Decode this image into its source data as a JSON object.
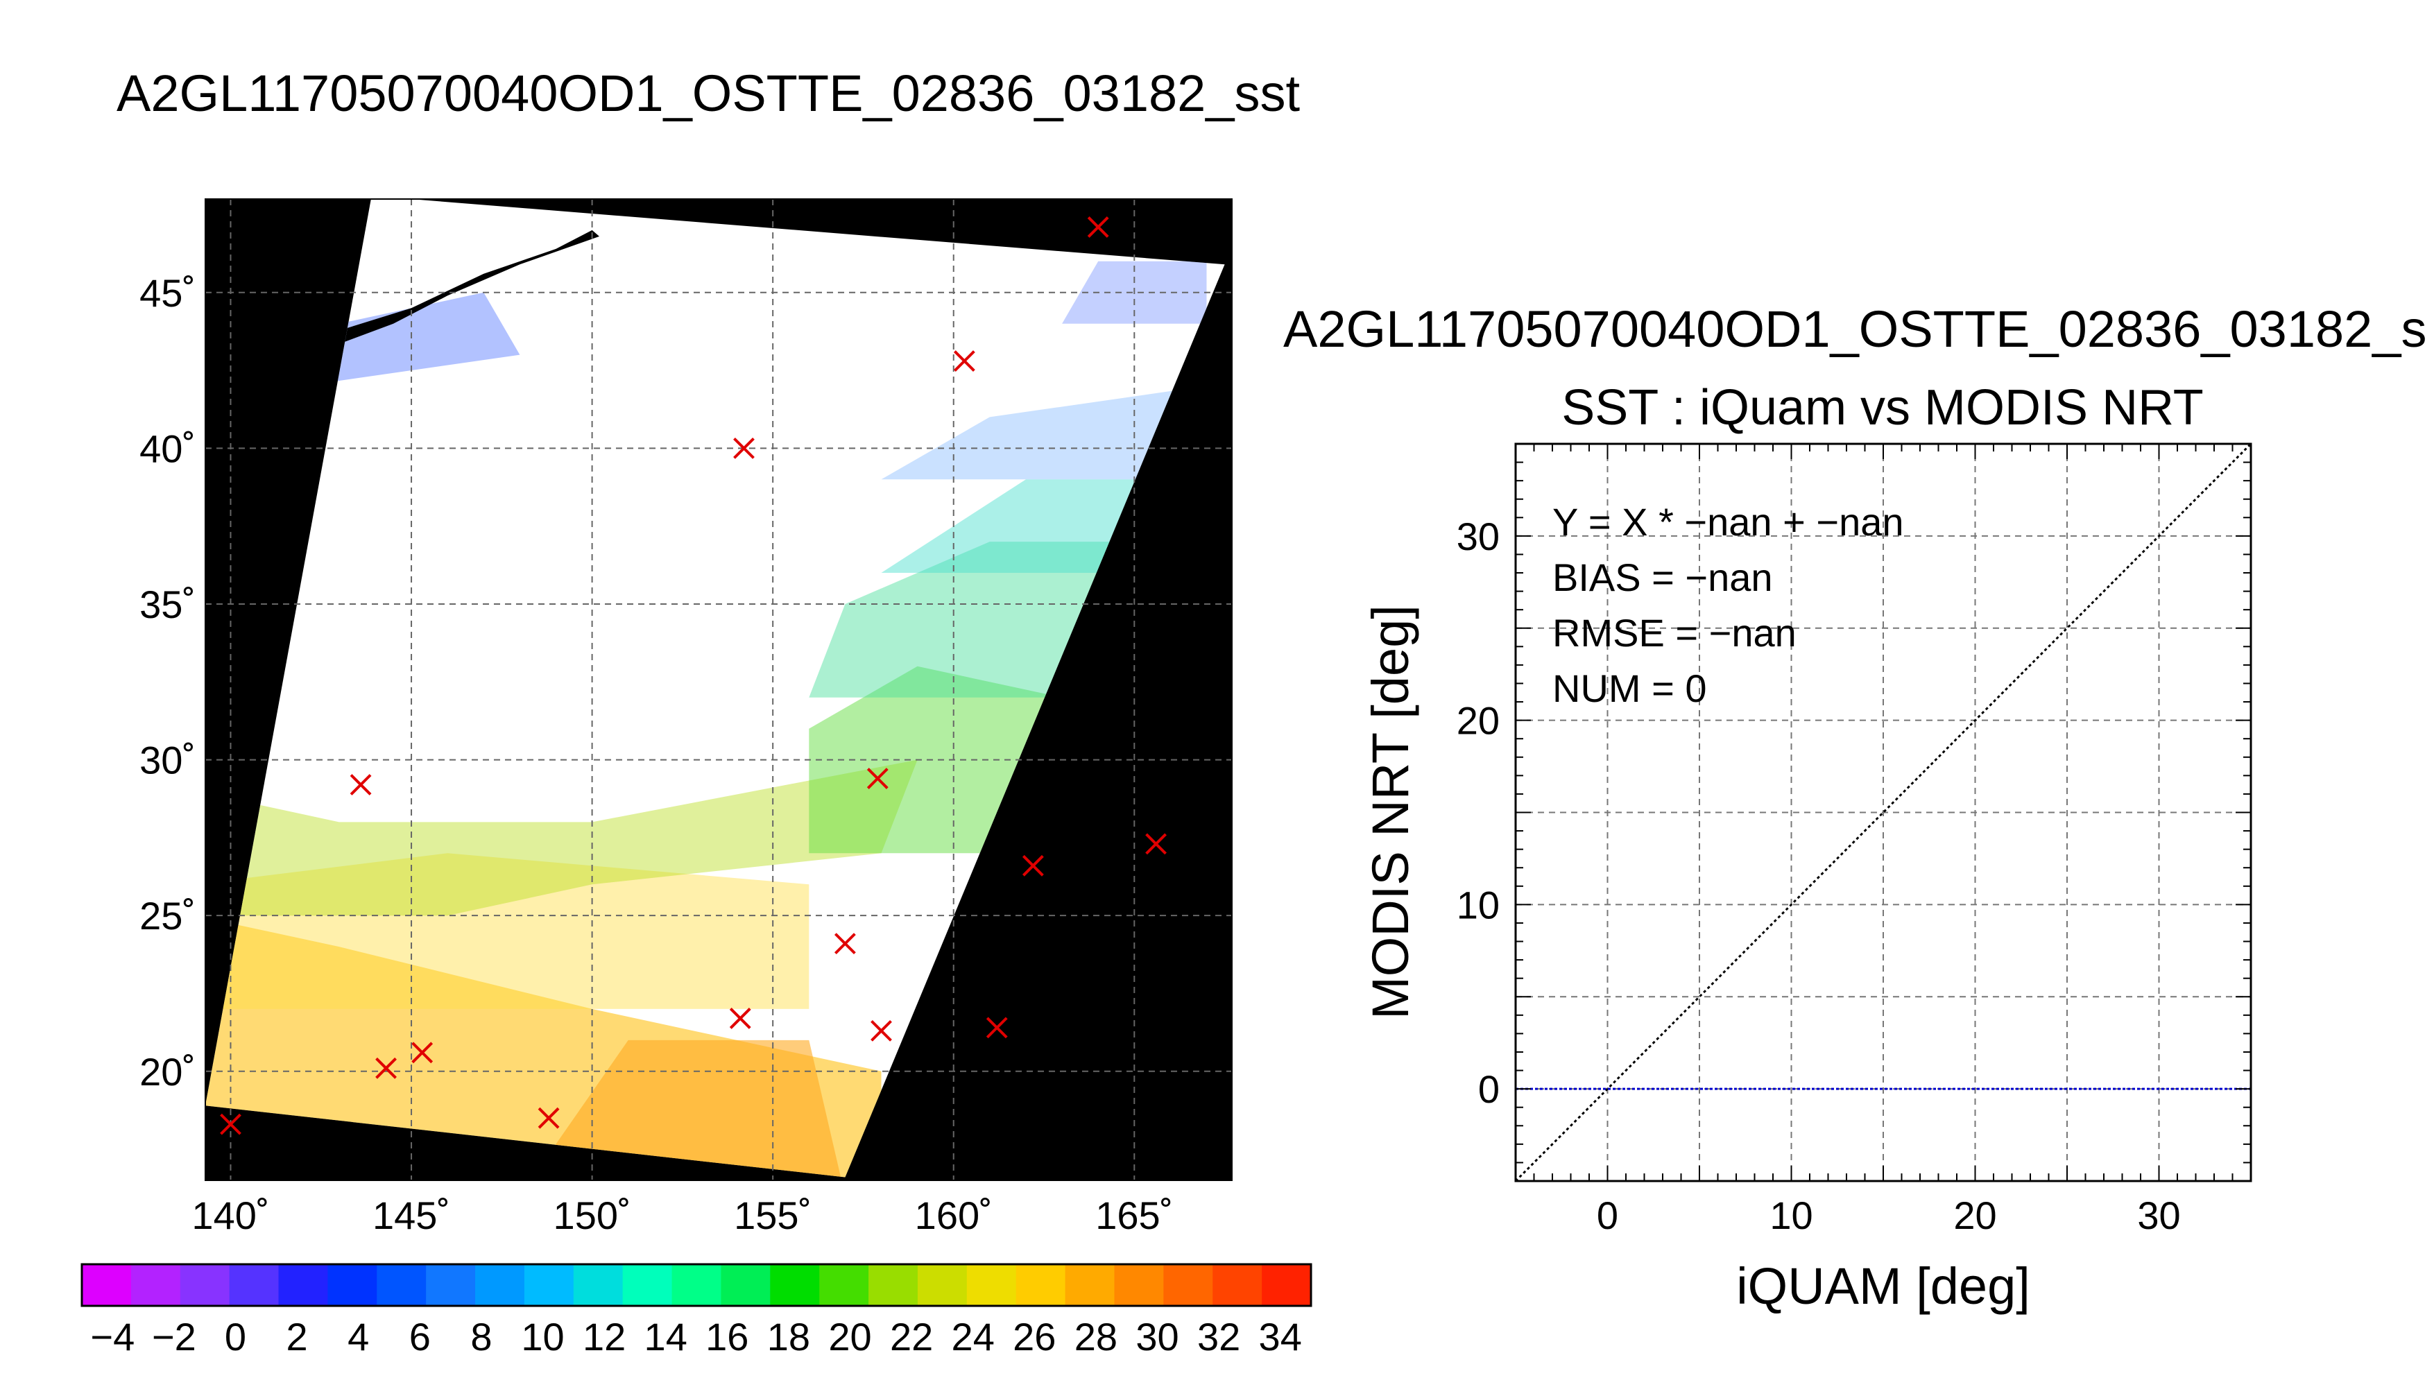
{
  "map_title": "A2GL11705070040OD1_OSTTE_02836_03182_sst",
  "colorbar": {
    "ticks": [
      "−4",
      "−2",
      "0",
      "2",
      "4",
      "6",
      "8",
      "10",
      "12",
      "14",
      "16",
      "18",
      "20",
      "22",
      "24",
      "26",
      "28",
      "30",
      "32",
      "34"
    ],
    "range": [
      -5,
      35
    ],
    "colors": [
      "#dd00ff",
      "#b322ff",
      "#8833ff",
      "#5533ff",
      "#2222ff",
      "#0033ff",
      "#0055ff",
      "#1177ff",
      "#0099ff",
      "#00bbff",
      "#00dddd",
      "#00ffbb",
      "#00ff88",
      "#00ee55",
      "#00dd00",
      "#44dd00",
      "#99dd00",
      "#ccdd00",
      "#eedd00",
      "#ffcc00",
      "#ffaa00",
      "#ff8800",
      "#ff6600",
      "#ff4400",
      "#ff2200"
    ]
  },
  "chart_data": [
    {
      "type": "map",
      "title": "A2GL11705070040OD1_OSTTE_02836_03182_sst",
      "xlim": [
        139.3,
        167.7
      ],
      "ylim": [
        16.5,
        48
      ],
      "grid": true,
      "x_ticks": [
        {
          "value": 140,
          "label": "140˚"
        },
        {
          "value": 145,
          "label": "145˚"
        },
        {
          "value": 150,
          "label": "150˚"
        },
        {
          "value": 155,
          "label": "155˚"
        },
        {
          "value": 160,
          "label": "160˚"
        },
        {
          "value": 165,
          "label": "165˚"
        }
      ],
      "y_ticks": [
        {
          "value": 20,
          "label": "20˚"
        },
        {
          "value": 25,
          "label": "25˚"
        },
        {
          "value": 30,
          "label": "30˚"
        },
        {
          "value": 35,
          "label": "35˚"
        },
        {
          "value": 40,
          "label": "40˚"
        },
        {
          "value": 45,
          "label": "45˚"
        }
      ],
      "swath": [
        [
          143.9,
          48.1
        ],
        [
          167.5,
          45.9
        ],
        [
          157.0,
          16.6
        ],
        [
          139.3,
          18.9
        ]
      ],
      "markers": [
        {
          "lon": 140.0,
          "lat": 18.3
        },
        {
          "lon": 143.6,
          "lat": 29.2
        },
        {
          "lon": 144.3,
          "lat": 20.1
        },
        {
          "lon": 145.3,
          "lat": 20.6
        },
        {
          "lon": 148.8,
          "lat": 18.5
        },
        {
          "lon": 154.2,
          "lat": 40.0
        },
        {
          "lon": 154.1,
          "lat": 21.7
        },
        {
          "lon": 157.0,
          "lat": 24.1
        },
        {
          "lon": 157.9,
          "lat": 29.4
        },
        {
          "lon": 158.0,
          "lat": 21.3
        },
        {
          "lon": 160.3,
          "lat": 42.8
        },
        {
          "lon": 161.2,
          "lat": 21.4
        },
        {
          "lon": 162.2,
          "lat": 26.6
        },
        {
          "lon": 164.0,
          "lat": 47.1
        },
        {
          "lon": 165.6,
          "lat": 27.3
        }
      ]
    },
    {
      "type": "scatter",
      "figure_title": "A2GL11705070040OD1_OSTTE_02836_03182_s",
      "title": "SST : iQuam vs MODIS NRT",
      "xlabel": "iQUAM [deg]",
      "ylabel": "MODIS NRT [deg]",
      "xlim": [
        -5,
        35
      ],
      "ylim": [
        -5,
        35
      ],
      "x_ticks": [
        0,
        10,
        20,
        30
      ],
      "y_ticks": [
        0,
        10,
        20,
        30
      ],
      "grid": true,
      "stats": [
        "Y = X * −nan + −nan",
        "BIAS = −nan",
        "RMSE = −nan",
        "NUM = 0"
      ],
      "points": [],
      "lines": [
        {
          "kind": "one_to_one",
          "from": [
            -5,
            -5
          ],
          "to": [
            35,
            35
          ],
          "color": "#000000"
        },
        {
          "kind": "zero_line",
          "y": 0,
          "color": "#0000cc"
        }
      ]
    }
  ]
}
